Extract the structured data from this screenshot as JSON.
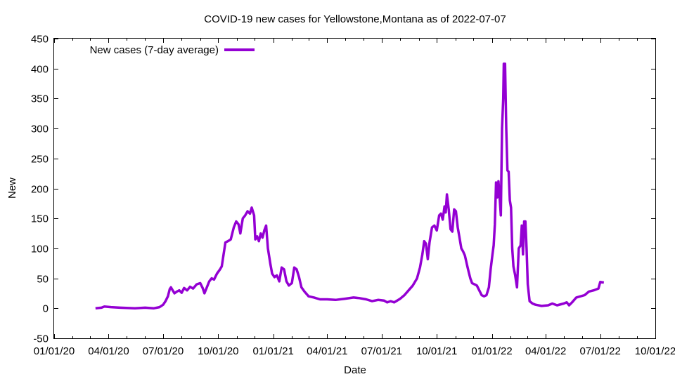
{
  "chart_data": {
    "type": "line",
    "title": "COVID-19 new cases for Yellowstone,Montana as of 2022-07-07",
    "xlabel": "Date",
    "ylabel": "New",
    "xlim": [
      "2020-01-01",
      "2022-10-01"
    ],
    "ylim": [
      -50,
      450
    ],
    "x_ticks": [
      "2020-01-01",
      "2020-04-01",
      "2020-07-01",
      "2020-10-01",
      "2021-01-01",
      "2021-04-01",
      "2021-07-01",
      "2021-10-01",
      "2022-01-01",
      "2022-04-01",
      "2022-07-01",
      "2022-10-01"
    ],
    "x_tick_labels": [
      "01/01/20",
      "04/01/20",
      "07/01/20",
      "10/01/20",
      "01/01/21",
      "04/01/21",
      "07/01/21",
      "10/01/21",
      "01/01/22",
      "04/01/22",
      "07/01/22",
      "10/01/22"
    ],
    "y_ticks": [
      -50,
      0,
      50,
      100,
      150,
      200,
      250,
      300,
      350,
      400,
      450
    ],
    "y_tick_labels": [
      "-50",
      "0",
      "50",
      "100",
      "150",
      "200",
      "250",
      "300",
      "350",
      "400",
      "450"
    ],
    "grid": false,
    "legend": "top-left",
    "series": [
      {
        "name": "New cases (7-day average)",
        "color": "#9400d3",
        "points": [
          [
            "2020-03-10",
            0
          ],
          [
            "2020-03-20",
            1
          ],
          [
            "2020-03-25",
            3
          ],
          [
            "2020-04-05",
            2
          ],
          [
            "2020-04-20",
            1
          ],
          [
            "2020-05-15",
            0
          ],
          [
            "2020-06-01",
            1
          ],
          [
            "2020-06-15",
            0
          ],
          [
            "2020-06-25",
            2
          ],
          [
            "2020-07-01",
            6
          ],
          [
            "2020-07-05",
            12
          ],
          [
            "2020-07-09",
            20
          ],
          [
            "2020-07-12",
            32
          ],
          [
            "2020-07-14",
            35
          ],
          [
            "2020-07-17",
            30
          ],
          [
            "2020-07-20",
            25
          ],
          [
            "2020-07-24",
            28
          ],
          [
            "2020-07-28",
            30
          ],
          [
            "2020-08-01",
            26
          ],
          [
            "2020-08-05",
            34
          ],
          [
            "2020-08-10",
            30
          ],
          [
            "2020-08-15",
            36
          ],
          [
            "2020-08-20",
            33
          ],
          [
            "2020-08-26",
            40
          ],
          [
            "2020-09-01",
            42
          ],
          [
            "2020-09-05",
            34
          ],
          [
            "2020-09-08",
            25
          ],
          [
            "2020-09-12",
            35
          ],
          [
            "2020-09-16",
            45
          ],
          [
            "2020-09-20",
            50
          ],
          [
            "2020-09-24",
            48
          ],
          [
            "2020-09-29",
            58
          ],
          [
            "2020-10-04",
            65
          ],
          [
            "2020-10-07",
            70
          ],
          [
            "2020-10-10",
            90
          ],
          [
            "2020-10-13",
            110
          ],
          [
            "2020-10-17",
            112
          ],
          [
            "2020-10-22",
            115
          ],
          [
            "2020-10-27",
            135
          ],
          [
            "2020-10-31",
            145
          ],
          [
            "2020-11-04",
            140
          ],
          [
            "2020-11-07",
            125
          ],
          [
            "2020-11-11",
            150
          ],
          [
            "2020-11-15",
            155
          ],
          [
            "2020-11-19",
            162
          ],
          [
            "2020-11-23",
            158
          ],
          [
            "2020-11-26",
            168
          ],
          [
            "2020-11-30",
            155
          ],
          [
            "2020-12-02",
            115
          ],
          [
            "2020-12-05",
            120
          ],
          [
            "2020-12-08",
            112
          ],
          [
            "2020-12-11",
            125
          ],
          [
            "2020-12-14",
            118
          ],
          [
            "2020-12-17",
            130
          ],
          [
            "2020-12-20",
            138
          ],
          [
            "2020-12-23",
            100
          ],
          [
            "2020-12-27",
            75
          ],
          [
            "2020-12-30",
            58
          ],
          [
            "2021-01-03",
            52
          ],
          [
            "2021-01-07",
            55
          ],
          [
            "2021-01-11",
            45
          ],
          [
            "2021-01-15",
            68
          ],
          [
            "2021-01-19",
            65
          ],
          [
            "2021-01-23",
            45
          ],
          [
            "2021-01-27",
            38
          ],
          [
            "2021-02-01",
            42
          ],
          [
            "2021-02-05",
            68
          ],
          [
            "2021-02-09",
            65
          ],
          [
            "2021-02-13",
            52
          ],
          [
            "2021-02-17",
            35
          ],
          [
            "2021-02-22",
            28
          ],
          [
            "2021-03-01",
            20
          ],
          [
            "2021-03-10",
            18
          ],
          [
            "2021-03-20",
            15
          ],
          [
            "2021-04-01",
            15
          ],
          [
            "2021-04-15",
            14
          ],
          [
            "2021-05-01",
            16
          ],
          [
            "2021-05-15",
            18
          ],
          [
            "2021-05-25",
            17
          ],
          [
            "2021-06-05",
            15
          ],
          [
            "2021-06-15",
            12
          ],
          [
            "2021-06-25",
            14
          ],
          [
            "2021-07-05",
            13
          ],
          [
            "2021-07-10",
            10
          ],
          [
            "2021-07-16",
            12
          ],
          [
            "2021-07-22",
            10
          ],
          [
            "2021-08-01",
            16
          ],
          [
            "2021-08-08",
            22
          ],
          [
            "2021-08-15",
            30
          ],
          [
            "2021-08-22",
            38
          ],
          [
            "2021-08-29",
            50
          ],
          [
            "2021-09-03",
            68
          ],
          [
            "2021-09-07",
            90
          ],
          [
            "2021-09-10",
            112
          ],
          [
            "2021-09-13",
            108
          ],
          [
            "2021-09-16",
            82
          ],
          [
            "2021-09-19",
            110
          ],
          [
            "2021-09-23",
            135
          ],
          [
            "2021-09-27",
            138
          ],
          [
            "2021-10-01",
            130
          ],
          [
            "2021-10-05",
            155
          ],
          [
            "2021-10-08",
            158
          ],
          [
            "2021-10-11",
            148
          ],
          [
            "2021-10-14",
            170
          ],
          [
            "2021-10-16",
            160
          ],
          [
            "2021-10-18",
            190
          ],
          [
            "2021-10-21",
            165
          ],
          [
            "2021-10-24",
            132
          ],
          [
            "2021-10-27",
            128
          ],
          [
            "2021-10-30",
            165
          ],
          [
            "2021-11-02",
            162
          ],
          [
            "2021-11-05",
            135
          ],
          [
            "2021-11-08",
            118
          ],
          [
            "2021-11-11",
            100
          ],
          [
            "2021-11-14",
            95
          ],
          [
            "2021-11-17",
            88
          ],
          [
            "2021-11-20",
            75
          ],
          [
            "2021-11-23",
            62
          ],
          [
            "2021-11-26",
            50
          ],
          [
            "2021-11-29",
            42
          ],
          [
            "2021-12-03",
            40
          ],
          [
            "2021-12-07",
            38
          ],
          [
            "2021-12-11",
            30
          ],
          [
            "2021-12-15",
            22
          ],
          [
            "2021-12-19",
            20
          ],
          [
            "2021-12-23",
            22
          ],
          [
            "2021-12-27",
            35
          ],
          [
            "2021-12-30",
            65
          ],
          [
            "2022-01-02",
            90
          ],
          [
            "2022-01-04",
            105
          ],
          [
            "2022-01-06",
            140
          ],
          [
            "2022-01-08",
            210
          ],
          [
            "2022-01-10",
            185
          ],
          [
            "2022-01-12",
            212
          ],
          [
            "2022-01-14",
            185
          ],
          [
            "2022-01-16",
            155
          ],
          [
            "2022-01-18",
            300
          ],
          [
            "2022-01-20",
            350
          ],
          [
            "2022-01-21",
            408
          ],
          [
            "2022-01-23",
            408
          ],
          [
            "2022-01-25",
            300
          ],
          [
            "2022-01-27",
            230
          ],
          [
            "2022-01-29",
            228
          ],
          [
            "2022-01-31",
            180
          ],
          [
            "2022-02-02",
            168
          ],
          [
            "2022-02-04",
            100
          ],
          [
            "2022-02-06",
            70
          ],
          [
            "2022-02-09",
            55
          ],
          [
            "2022-02-12",
            35
          ],
          [
            "2022-02-15",
            100
          ],
          [
            "2022-02-18",
            105
          ],
          [
            "2022-02-20",
            138
          ],
          [
            "2022-02-22",
            90
          ],
          [
            "2022-02-24",
            145
          ],
          [
            "2022-02-26",
            145
          ],
          [
            "2022-02-28",
            100
          ],
          [
            "2022-03-02",
            40
          ],
          [
            "2022-03-05",
            12
          ],
          [
            "2022-03-10",
            8
          ],
          [
            "2022-03-15",
            6
          ],
          [
            "2022-03-25",
            4
          ],
          [
            "2022-04-05",
            5
          ],
          [
            "2022-04-12",
            8
          ],
          [
            "2022-04-20",
            5
          ],
          [
            "2022-05-01",
            8
          ],
          [
            "2022-05-06",
            10
          ],
          [
            "2022-05-10",
            5
          ],
          [
            "2022-05-15",
            10
          ],
          [
            "2022-05-22",
            18
          ],
          [
            "2022-05-29",
            20
          ],
          [
            "2022-06-05",
            22
          ],
          [
            "2022-06-12",
            28
          ],
          [
            "2022-06-20",
            30
          ],
          [
            "2022-06-28",
            33
          ],
          [
            "2022-07-01",
            44
          ],
          [
            "2022-07-07",
            43
          ]
        ]
      }
    ]
  }
}
